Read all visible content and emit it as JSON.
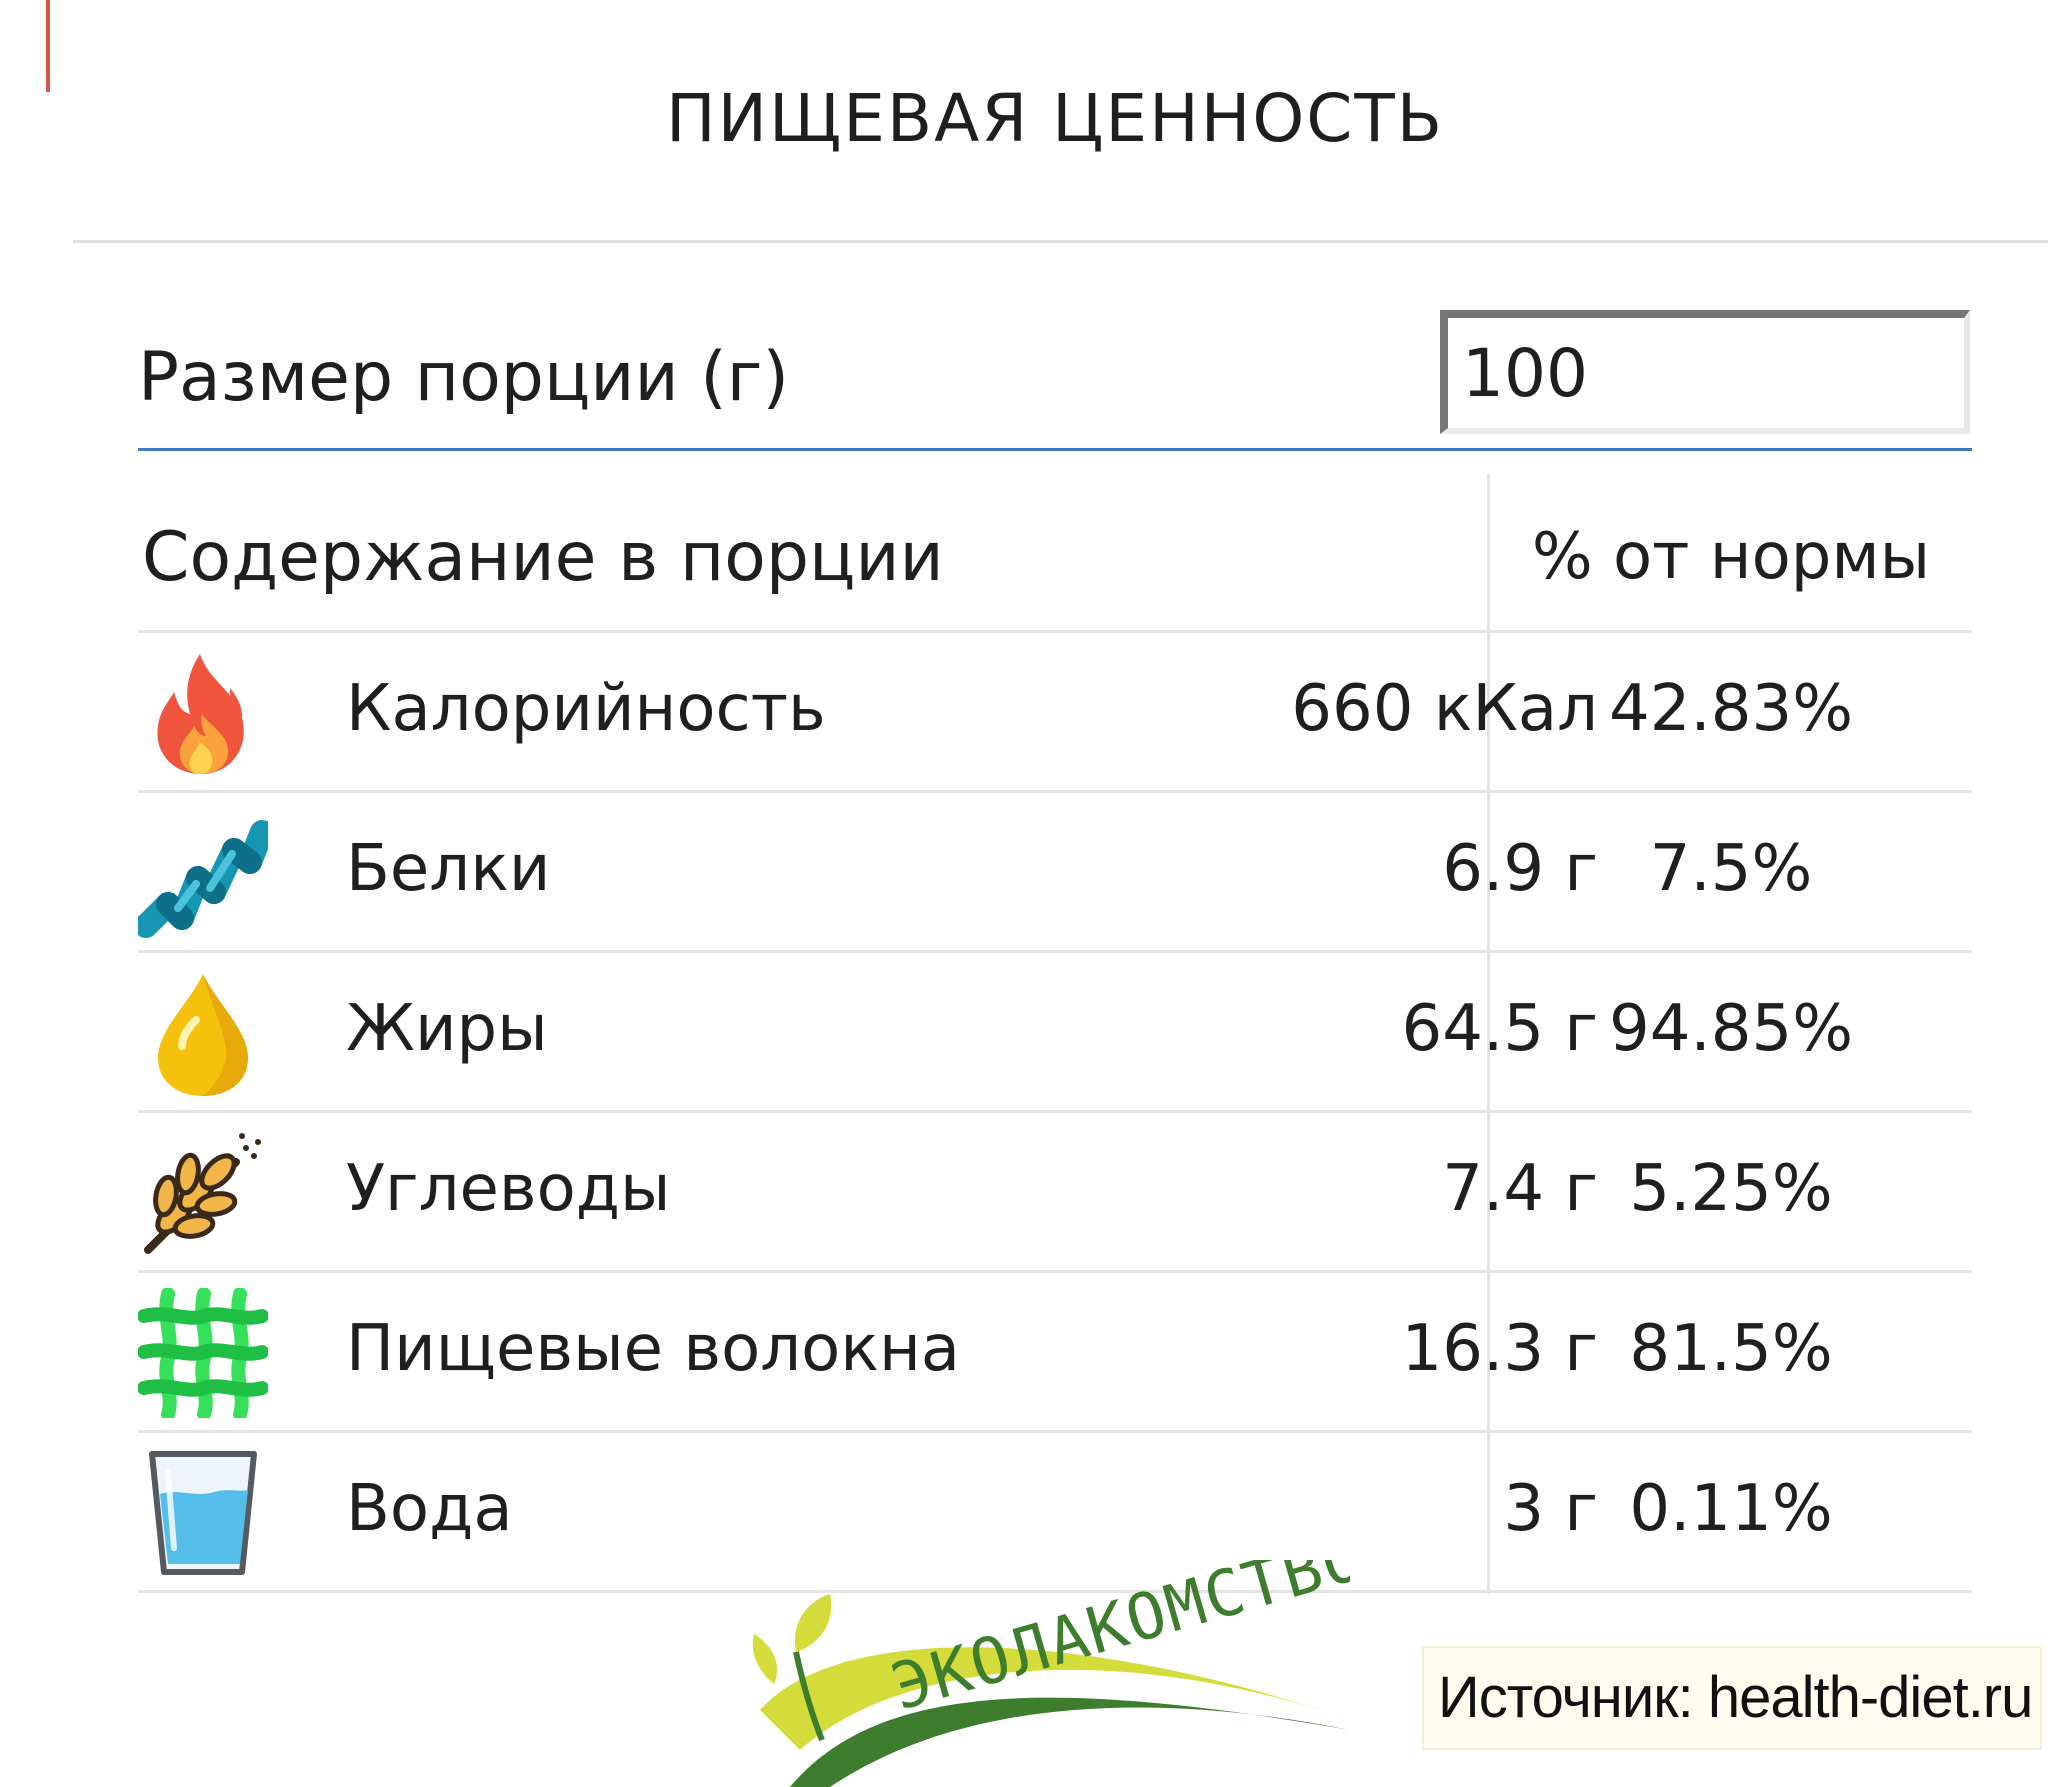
{
  "title": "ПИЩЕВАЯ ЦЕННОСТЬ",
  "portion": {
    "label": "Размер порции (г)",
    "value": "100"
  },
  "table": {
    "header_left": "Содержание в порции",
    "header_right": "% от нормы",
    "rows": [
      {
        "icon": "flame-icon",
        "name": "Калорийность",
        "amount": "660 кКал",
        "percent": "42.83%"
      },
      {
        "icon": "protein-helix-icon",
        "name": "Белки",
        "amount": "6.9 г",
        "percent": "7.5%"
      },
      {
        "icon": "oil-drop-icon",
        "name": "Жиры",
        "amount": "64.5 г",
        "percent": "94.85%"
      },
      {
        "icon": "wheat-icon",
        "name": "Углеводы",
        "amount": "7.4 г",
        "percent": "5.25%"
      },
      {
        "icon": "fiber-mesh-icon",
        "name": "Пищевые волокна",
        "amount": "16.3 г",
        "percent": "81.5%"
      },
      {
        "icon": "water-glass-icon",
        "name": "Вода",
        "amount": "3 г",
        "percent": "0.11%"
      }
    ]
  },
  "logo": {
    "text": "ЭКОЛАКОМСТВО"
  },
  "source": "Источник: health-diet.ru",
  "colors": {
    "accent_line": "#3b7bbf",
    "logo_yellow": "#d4dc3c",
    "logo_green": "#3e7d2e"
  }
}
